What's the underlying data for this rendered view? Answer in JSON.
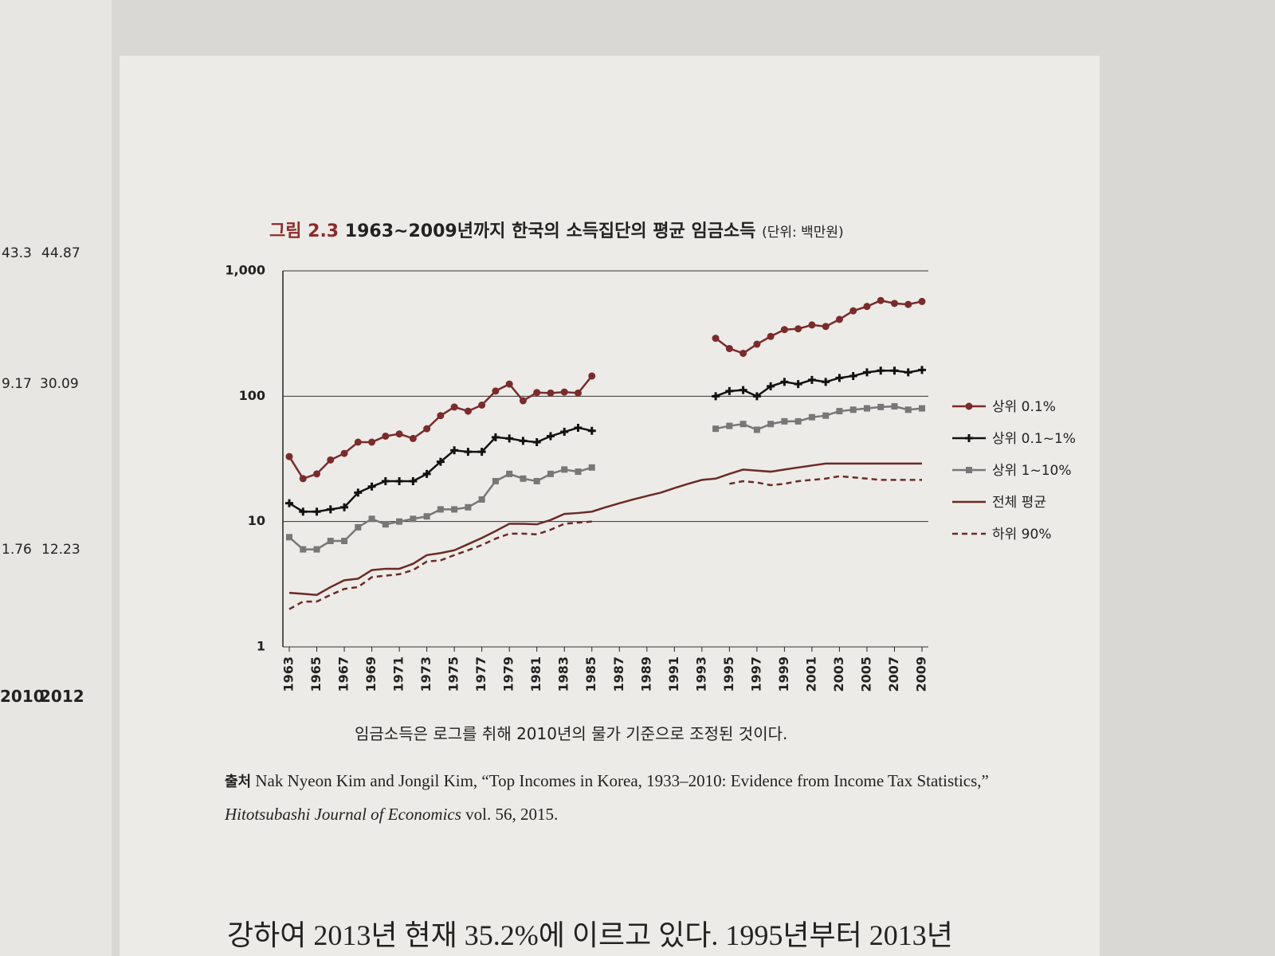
{
  "chart_data": {
    "type": "line",
    "figure_label": "그림 2.3",
    "title": "1963~2009년까지 한국의 소득집단의 평균 임금소득",
    "unit": "(단위: 백만원)",
    "x": [
      1963,
      1964,
      1965,
      1966,
      1967,
      1968,
      1969,
      1970,
      1971,
      1972,
      1973,
      1974,
      1975,
      1976,
      1977,
      1978,
      1979,
      1980,
      1981,
      1982,
      1983,
      1984,
      1985,
      1986,
      1987,
      1988,
      1989,
      1990,
      1991,
      1992,
      1993,
      1994,
      1995,
      1996,
      1997,
      1998,
      1999,
      2000,
      2001,
      2002,
      2003,
      2004,
      2005,
      2006,
      2007,
      2008,
      2009
    ],
    "xlim": [
      1963,
      2009
    ],
    "xticks": [
      1963,
      1965,
      1967,
      1969,
      1971,
      1973,
      1975,
      1977,
      1979,
      1981,
      1983,
      1985,
      1987,
      1989,
      1991,
      1993,
      1995,
      1997,
      1999,
      2001,
      2003,
      2005,
      2007,
      2009
    ],
    "ylim": [
      1,
      1000
    ],
    "yticks": [
      1,
      10,
      100,
      {
        "value": 1000,
        "label": "1,000"
      }
    ],
    "log_scale": "y",
    "grid": true,
    "legend": "right",
    "series": [
      {
        "name": "상위 0.1%",
        "color": "#7a2b2b",
        "marker": "circle",
        "dash": false,
        "values": [
          33,
          22,
          24,
          31,
          35,
          43,
          43,
          48,
          50,
          46,
          55,
          70,
          82,
          76,
          85,
          110,
          125,
          92,
          107,
          106,
          108,
          106,
          145,
          null,
          null,
          null,
          null,
          null,
          null,
          null,
          null,
          290,
          240,
          220,
          260,
          300,
          340,
          345,
          370,
          360,
          410,
          480,
          520,
          580,
          550,
          540,
          570
        ]
      },
      {
        "name": "상위 0.1~1%",
        "color": "#111111",
        "marker": "plus",
        "dash": false,
        "values": [
          14,
          12,
          12,
          12.5,
          13,
          17,
          19,
          21,
          21,
          21,
          24,
          30,
          37,
          36,
          36,
          47,
          46,
          44,
          43,
          48,
          52,
          56,
          53,
          null,
          null,
          null,
          null,
          null,
          null,
          null,
          null,
          100,
          110,
          112,
          100,
          120,
          130,
          125,
          135,
          130,
          140,
          145,
          155,
          160,
          160,
          155,
          162
        ]
      },
      {
        "name": "상위 1~10%",
        "color": "#777777",
        "marker": "square",
        "dash": false,
        "values": [
          7.5,
          6,
          6,
          7,
          7,
          9,
          10.5,
          9.5,
          10,
          10.5,
          11,
          12.5,
          12.5,
          13,
          15,
          21,
          24,
          22,
          21,
          24,
          26,
          25,
          27,
          null,
          null,
          null,
          null,
          null,
          null,
          null,
          null,
          55,
          58,
          60,
          54,
          60,
          63,
          63,
          68,
          70,
          76,
          78,
          80,
          82,
          83,
          78,
          80
        ]
      },
      {
        "name": "전체 평균",
        "color": "#6b2a26",
        "marker": "none",
        "dash": false,
        "values": [
          2.7,
          2.65,
          2.6,
          3.0,
          3.4,
          3.5,
          4.1,
          4.2,
          4.2,
          4.6,
          5.4,
          5.6,
          5.9,
          6.6,
          7.4,
          8.4,
          9.6,
          9.6,
          9.5,
          10.3,
          11.5,
          11.7,
          12,
          13,
          14,
          15,
          16,
          17,
          18.5,
          20,
          21.5,
          22,
          24,
          26,
          25.5,
          25,
          26,
          27,
          28,
          29,
          29,
          29,
          29,
          29,
          29,
          29,
          29
        ]
      },
      {
        "name": "하위 90%",
        "color": "#6b2a26",
        "marker": "none",
        "dash": true,
        "values": [
          2.0,
          2.3,
          2.3,
          2.6,
          2.9,
          3.0,
          3.6,
          3.7,
          3.8,
          4.1,
          4.8,
          4.9,
          5.4,
          5.9,
          6.5,
          7.3,
          8.0,
          8.0,
          7.9,
          8.6,
          9.6,
          9.8,
          10,
          null,
          null,
          null,
          null,
          null,
          null,
          null,
          null,
          null,
          20,
          21,
          20.5,
          19.5,
          20,
          21,
          21.5,
          22,
          23,
          22.5,
          22,
          21.5,
          21.5,
          21.5,
          21.5
        ]
      }
    ],
    "note": "임금소득은 로그를 취해 2010년의 물가 기준으로 조정된 것이다.",
    "source": {
      "label": "출처",
      "text": "Nak Nyeon Kim and Jongil Kim, “Top Incomes in Korea, 1933–2010: Evidence from Income Tax Statistics,”",
      "journal": "Hitotsubashi Journal of Economics",
      "tail": "vol. 56, 2015."
    }
  },
  "page_text": {
    "body": "강하여 2013년 현재 35.2%에 이르고 있다. 1995년부터 2013년",
    "left_page": [
      "43.3",
      "44.87",
      "9.17",
      "30.09",
      "1.76",
      "12.23",
      "2010",
      "2012"
    ]
  }
}
